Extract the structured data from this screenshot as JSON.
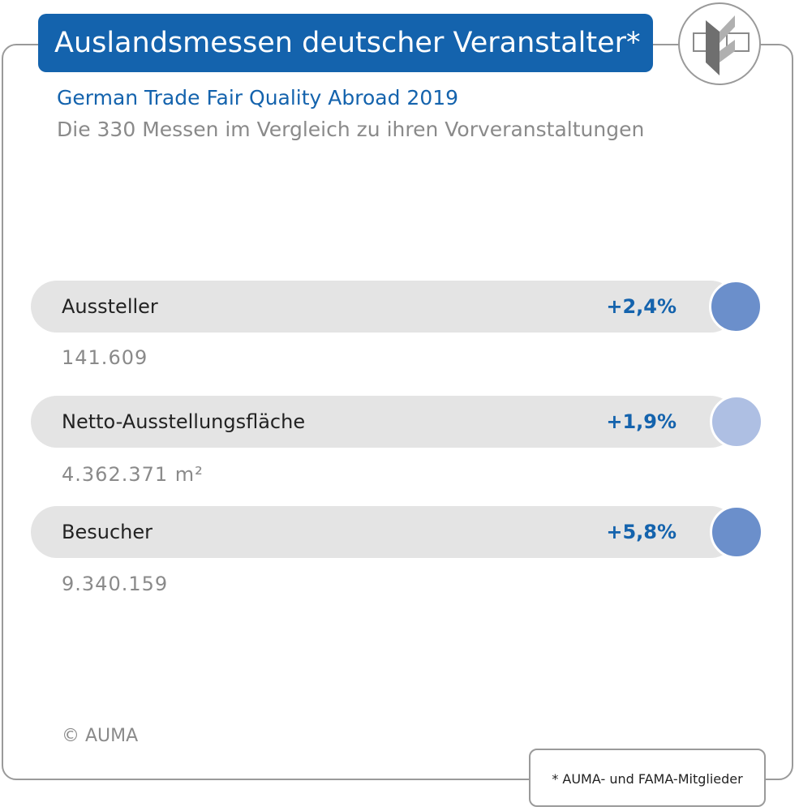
{
  "header": {
    "title": "Auslandsmessen deutscher Veranstalter*",
    "subtitle": "German Trade Fair Quality Abroad 2019",
    "subtitle2": "Die 330 Messen im Vergleich zu ihren Vorveranstaltungen"
  },
  "metrics": [
    {
      "label": "Aussteller",
      "change": "+2,4%",
      "value": "141.609",
      "dot_color": "#6b8fcb"
    },
    {
      "label": "Netto-Ausstellungsfläche",
      "change": "+1,9%",
      "value": "4.362.371 m²",
      "dot_color": "#aebfe3"
    },
    {
      "label": "Besucher",
      "change": "+5,8%",
      "value": "9.340.159",
      "dot_color": "#6b8fcb"
    }
  ],
  "footer": {
    "copyright": "© AUMA",
    "footnote": "* AUMA- und FAMA-Mitglieder"
  },
  "colors": {
    "brand_blue": "#1463ad",
    "bar_gray": "#e4e4e4",
    "text_gray": "#8a8a8a"
  },
  "icons": {
    "logo": "auma-logo-icon"
  }
}
